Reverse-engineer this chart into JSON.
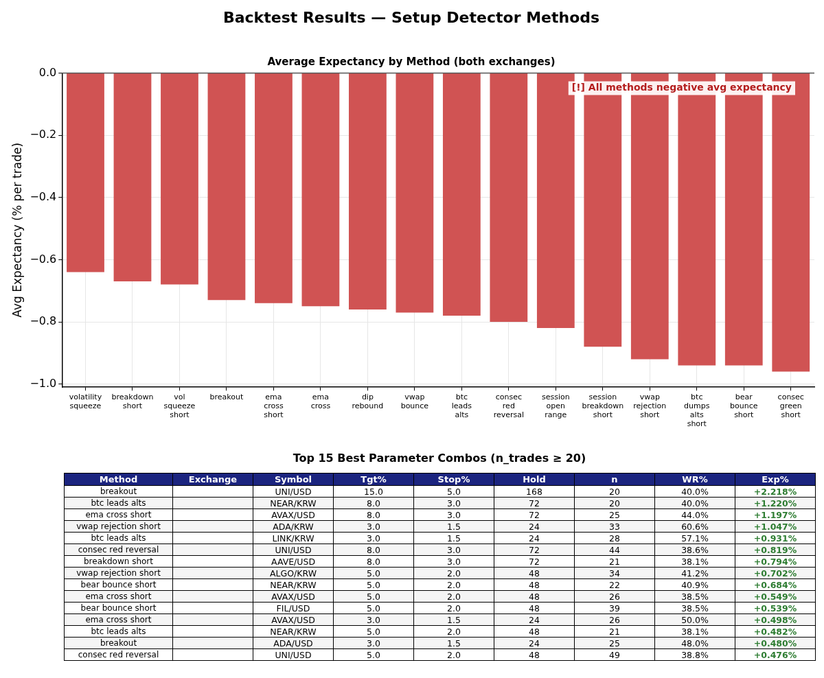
{
  "chart_data": [
    {
      "type": "bar",
      "title": "Backtest Results — Setup Detector Methods",
      "subtitle": "Average Expectancy by Method (both exchanges)",
      "ylabel": "Avg Expectancy (% per trade)",
      "categories": [
        "volatility squeeze",
        "breakdown short",
        "vol squeeze short",
        "breakout",
        "ema cross short",
        "ema cross",
        "dip rebound",
        "vwap bounce",
        "btc leads alts",
        "consec red reversal",
        "session open range",
        "session breakdown short",
        "vwap rejection short",
        "btc dumps alts short",
        "bear bounce short",
        "consec green short"
      ],
      "values": [
        -0.64,
        -0.67,
        -0.68,
        -0.73,
        -0.74,
        -0.75,
        -0.76,
        -0.77,
        -0.78,
        -0.8,
        -0.82,
        -0.88,
        -0.92,
        -0.94,
        -0.94,
        -0.96
      ],
      "color": "#d05353",
      "ylim": [
        -1.01,
        0
      ],
      "yticks": [
        {
          "value": 0,
          "label": "0.0"
        },
        -0.2,
        -0.4,
        -0.6,
        -0.8,
        {
          "value": -1,
          "label": "−1.0"
        }
      ],
      "grid": true,
      "ref_lines": [
        {
          "axis": "y",
          "value": 0,
          "color": "#555555"
        }
      ],
      "annotations": [
        "[!] All methods negative avg expectancy"
      ]
    },
    {
      "type": "other",
      "title": "Top 15 Best Parameter Combos (n_trades ≥ 20)",
      "categories": [
        "Method",
        "Exchange",
        "Symbol",
        "Tgt%",
        "Stop%",
        "Hold",
        "n",
        "WR%",
        "Exp%"
      ],
      "cell_labels": [
        [
          "breakout",
          null,
          "UNI/USD",
          "15.0",
          "5.0",
          "168",
          "20",
          "40.0%",
          "+2.218%"
        ],
        [
          "btc leads alts",
          null,
          "NEAR/KRW",
          "8.0",
          "3.0",
          "72",
          "20",
          "40.0%",
          "+1.220%"
        ],
        [
          "ema cross short",
          null,
          "AVAX/USD",
          "8.0",
          "3.0",
          "72",
          "25",
          "44.0%",
          "+1.197%"
        ],
        [
          "vwap rejection short",
          null,
          "ADA/KRW",
          "3.0",
          "1.5",
          "24",
          "33",
          "60.6%",
          "+1.047%"
        ],
        [
          "btc leads alts",
          null,
          "LINK/KRW",
          "3.0",
          "1.5",
          "24",
          "28",
          "57.1%",
          "+0.931%"
        ],
        [
          "consec red reversal",
          null,
          "UNI/USD",
          "8.0",
          "3.0",
          "72",
          "44",
          "38.6%",
          "+0.819%"
        ],
        [
          "breakdown short",
          null,
          "AAVE/USD",
          "8.0",
          "3.0",
          "72",
          "21",
          "38.1%",
          "+0.794%"
        ],
        [
          "vwap rejection short",
          null,
          "ALGO/KRW",
          "5.0",
          "2.0",
          "48",
          "34",
          "41.2%",
          "+0.702%"
        ],
        [
          "bear bounce short",
          null,
          "NEAR/KRW",
          "5.0",
          "2.0",
          "48",
          "22",
          "40.9%",
          "+0.684%"
        ],
        [
          "ema cross short",
          null,
          "AVAX/USD",
          "5.0",
          "2.0",
          "48",
          "26",
          "38.5%",
          "+0.549%"
        ],
        [
          "bear bounce short",
          null,
          "FIL/USD",
          "5.0",
          "2.0",
          "48",
          "39",
          "38.5%",
          "+0.539%"
        ],
        [
          "ema cross short",
          null,
          "AVAX/USD",
          "3.0",
          "1.5",
          "24",
          "26",
          "50.0%",
          "+0.498%"
        ],
        [
          "btc leads alts",
          null,
          "NEAR/KRW",
          "5.0",
          "2.0",
          "48",
          "21",
          "38.1%",
          "+0.482%"
        ],
        [
          "breakout",
          null,
          "ADA/USD",
          "3.0",
          "1.5",
          "24",
          "25",
          "48.0%",
          "+0.480%"
        ],
        [
          "consec red reversal",
          null,
          "UNI/USD",
          "5.0",
          "2.0",
          "48",
          "49",
          "38.8%",
          "+0.476%"
        ]
      ]
    }
  ]
}
